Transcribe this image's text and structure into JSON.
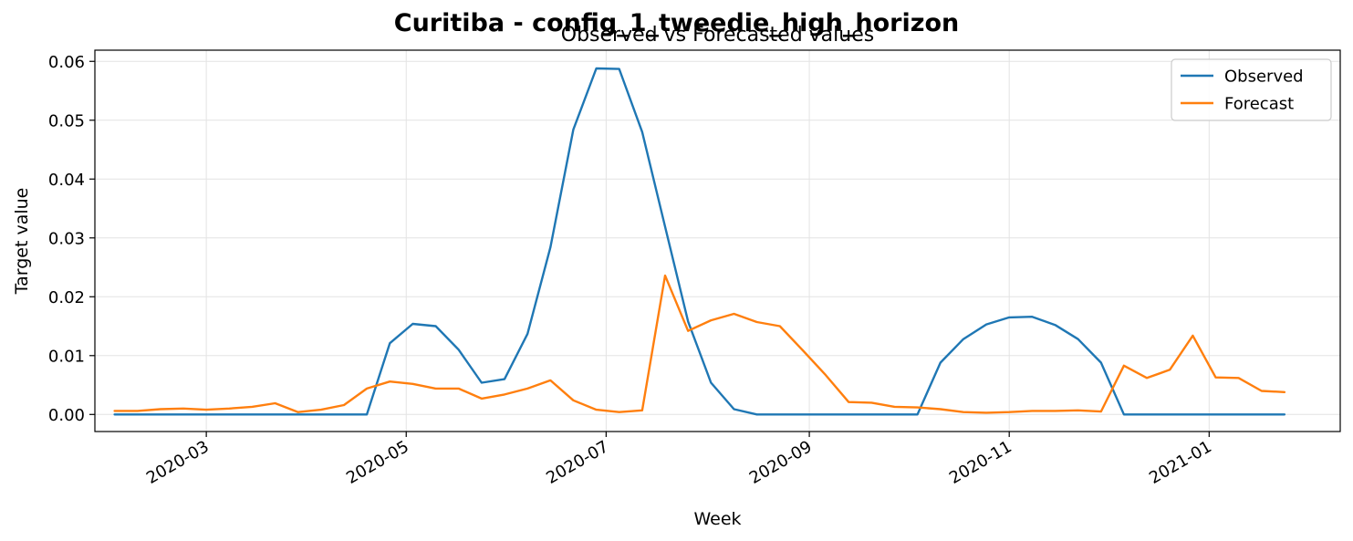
{
  "figure": {
    "suptitle": "Curitiba - config_1_tweedie_high_horizon"
  },
  "chart_data": {
    "type": "line",
    "title": "Observed vs Forecasted values",
    "xlabel": "Week",
    "ylabel": "Target value",
    "x_ticks": [
      {
        "date": "2020-03-01",
        "label": "2020-03"
      },
      {
        "date": "2020-05-01",
        "label": "2020-05"
      },
      {
        "date": "2020-07-01",
        "label": "2020-07"
      },
      {
        "date": "2020-09-01",
        "label": "2020-09"
      },
      {
        "date": "2020-11-01",
        "label": "2020-11"
      },
      {
        "date": "2021-01-01",
        "label": "2021-01"
      }
    ],
    "y_ticks": [
      {
        "value": 0.0,
        "label": "0.00"
      },
      {
        "value": 0.01,
        "label": "0.01"
      },
      {
        "value": 0.02,
        "label": "0.02"
      },
      {
        "value": 0.03,
        "label": "0.03"
      },
      {
        "value": 0.04,
        "label": "0.04"
      },
      {
        "value": 0.05,
        "label": "0.05"
      },
      {
        "value": 0.06,
        "label": "0.06"
      }
    ],
    "xlim": [
      "2020-01-27",
      "2021-02-10"
    ],
    "ylim": [
      -0.0029,
      0.0619
    ],
    "grid": true,
    "legend_position": "top-right",
    "x": [
      "2020-02-02",
      "2020-02-09",
      "2020-02-16",
      "2020-02-23",
      "2020-03-01",
      "2020-03-08",
      "2020-03-15",
      "2020-03-22",
      "2020-03-29",
      "2020-04-05",
      "2020-04-12",
      "2020-04-19",
      "2020-04-26",
      "2020-05-03",
      "2020-05-10",
      "2020-05-17",
      "2020-05-24",
      "2020-05-31",
      "2020-06-07",
      "2020-06-14",
      "2020-06-21",
      "2020-06-28",
      "2020-07-05",
      "2020-07-12",
      "2020-07-19",
      "2020-07-26",
      "2020-08-02",
      "2020-08-09",
      "2020-08-16",
      "2020-08-23",
      "2020-08-30",
      "2020-09-06",
      "2020-09-13",
      "2020-09-20",
      "2020-09-27",
      "2020-10-04",
      "2020-10-11",
      "2020-10-18",
      "2020-10-25",
      "2020-11-01",
      "2020-11-08",
      "2020-11-15",
      "2020-11-22",
      "2020-11-29",
      "2020-12-06",
      "2020-12-13",
      "2020-12-20",
      "2020-12-27",
      "2021-01-03",
      "2021-01-10",
      "2021-01-17",
      "2021-01-24"
    ],
    "series": [
      {
        "name": "Observed",
        "color": "#1f77b4",
        "values": [
          0,
          0,
          0,
          0,
          0,
          0,
          0,
          0,
          0,
          0,
          0,
          0,
          0.0121,
          0.0154,
          0.015,
          0.011,
          0.0054,
          0.006,
          0.0137,
          0.0284,
          0.0484,
          0.0588,
          0.0587,
          0.048,
          0.0319,
          0.0158,
          0.0054,
          0.0009,
          0,
          0,
          0,
          0,
          0,
          0,
          0,
          0,
          0.0088,
          0.0128,
          0.0153,
          0.0165,
          0.0166,
          0.0152,
          0.0128,
          0.0088,
          0,
          0,
          0,
          0,
          0,
          0,
          0,
          0
        ]
      },
      {
        "name": "Forecast",
        "color": "#ff7f0e",
        "values": [
          0.0006,
          0.0006,
          0.0009,
          0.001,
          0.0008,
          0.001,
          0.0013,
          0.0019,
          0.0004,
          0.0008,
          0.0016,
          0.0044,
          0.0056,
          0.0052,
          0.0044,
          0.0044,
          0.0027,
          0.0034,
          0.0044,
          0.0058,
          0.0024,
          0.0008,
          0.0004,
          0.0007,
          0.0236,
          0.0142,
          0.016,
          0.0171,
          0.0157,
          0.015,
          0.0109,
          0.0067,
          0.0021,
          0.002,
          0.0013,
          0.0012,
          0.0009,
          0.0004,
          0.0003,
          0.0004,
          0.0006,
          0.0006,
          0.0007,
          0.0005,
          0.0083,
          0.0062,
          0.0076,
          0.0134,
          0.0063,
          0.0062,
          0.004,
          0.0038
        ]
      }
    ]
  }
}
